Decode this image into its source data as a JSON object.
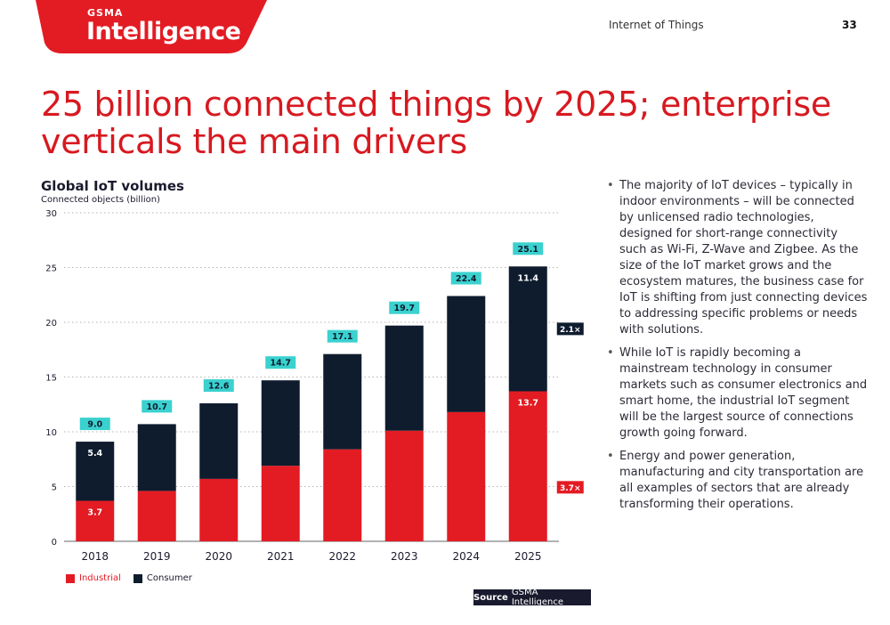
{
  "brand": {
    "small": "GSMA",
    "big": "Intelligence",
    "red": "#e31b23"
  },
  "header": {
    "section": "Internet of Things",
    "page_number": "33"
  },
  "headline": "25 billion connected things by 2025; enterprise verticals the main drivers",
  "colors": {
    "industrial": "#e31b23",
    "consumer": "#0f1c2e",
    "total_label_bg": "#3ad1cf",
    "delta_label_bg": "#0f1c2e"
  },
  "chart_data": {
    "type": "bar",
    "stacked": true,
    "title": "Global IoT volumes",
    "ylabel": "Connected objects (billion)",
    "ylim": [
      0,
      30
    ],
    "yticks": [
      0,
      5,
      10,
      15,
      20,
      25,
      30
    ],
    "grid": true,
    "categories": [
      "2018",
      "2019",
      "2020",
      "2021",
      "2022",
      "2023",
      "2024",
      "2025"
    ],
    "series": [
      {
        "name": "Industrial",
        "values": [
          3.7,
          4.6,
          5.7,
          6.9,
          8.4,
          10.1,
          11.8,
          13.7
        ]
      },
      {
        "name": "Consumer",
        "values": [
          5.4,
          6.1,
          6.9,
          7.8,
          8.7,
          9.6,
          10.6,
          11.4
        ]
      }
    ],
    "totals": [
      "9.0",
      "10.7",
      "12.6",
      "14.7",
      "17.1",
      "19.7",
      "22.4",
      "25.1"
    ],
    "segment_labels": [
      {
        "category": "2018",
        "industrial": "3.7",
        "consumer": "5.4"
      },
      {
        "category": "2025",
        "industrial": "13.7",
        "consumer": "11.4"
      }
    ],
    "growth_annotations": {
      "consumer": "2.1×",
      "industrial": "3.7×"
    },
    "legend": [
      "Industrial",
      "Consumer"
    ]
  },
  "bullets": [
    "The majority of IoT devices – typically in indoor environments – will be connected by unlicensed radio technologies, designed for short-range connectivity such as Wi-Fi, Z-Wave and Zigbee. As the size of the IoT market grows and the ecosystem matures, the business case for IoT is shifting from just connecting devices to addressing specific problems or needs with solutions.",
    "While IoT is rapidly becoming a mainstream technology in consumer markets such as consumer electronics and smart home, the industrial IoT segment will be the largest source of connections growth going forward.",
    "Energy and power generation, manufacturing and city transportation are all examples of sectors that are already transforming their operations."
  ],
  "source": {
    "label": "Source",
    "text": "GSMA Intelligence"
  }
}
